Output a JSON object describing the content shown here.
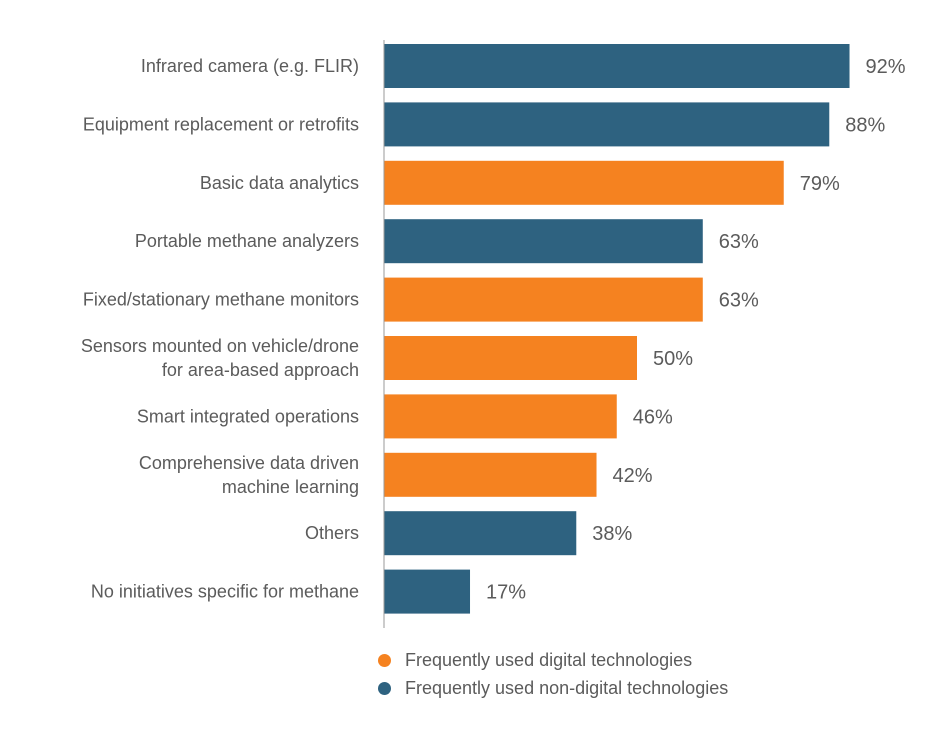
{
  "chart_data": {
    "type": "bar",
    "orientation": "horizontal",
    "categories": [
      "Infrared camera (e.g. FLIR)",
      "Equipment replacement or retrofits",
      "Basic data analytics",
      "Portable methane analyzers",
      "Fixed/stationary methane monitors",
      "Sensors mounted on vehicle/drone\nfor area-based approach",
      "Smart integrated operations",
      "Comprehensive data driven\nmachine learning",
      "Others",
      "No initiatives specific for methane"
    ],
    "values": [
      92,
      88,
      79,
      63,
      63,
      50,
      46,
      42,
      38,
      17
    ],
    "value_labels": [
      "92%",
      "88%",
      "79%",
      "63%",
      "63%",
      "50%",
      "46%",
      "42%",
      "38%",
      "17%"
    ],
    "groups": [
      "non-digital",
      "non-digital",
      "digital",
      "non-digital",
      "digital",
      "digital",
      "digital",
      "digital",
      "non-digital",
      "non-digital"
    ],
    "xlim": [
      0,
      100
    ],
    "grid": false,
    "legend_position": "bottom",
    "legend": [
      {
        "key": "digital",
        "label": "Frequently used digital technologies",
        "color": "#f58220"
      },
      {
        "key": "non-digital",
        "label": "Frequently used non-digital technologies",
        "color": "#2e6280"
      }
    ],
    "colors": {
      "digital": "#f58220",
      "non-digital": "#2e6280",
      "axis": "#999999"
    }
  }
}
